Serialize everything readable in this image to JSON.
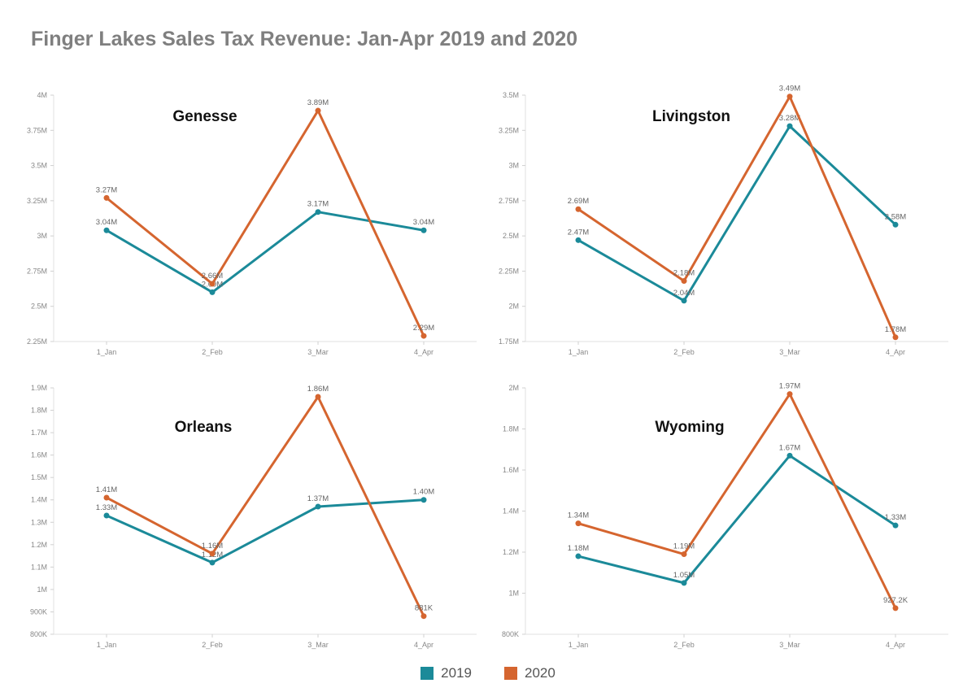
{
  "title": "Finger Lakes Sales Tax Revenue: Jan-Apr 2019 and 2020",
  "colors": {
    "2019": "#1b8a99",
    "2020": "#d5652f"
  },
  "legend": [
    {
      "label": "2019",
      "color": "#1b8a99"
    },
    {
      "label": "2020",
      "color": "#d5652f"
    }
  ],
  "chart_data": [
    {
      "type": "line",
      "title": "Genesse",
      "categories": [
        "1_Jan",
        "2_Feb",
        "3_Mar",
        "4_Apr"
      ],
      "ylim": [
        2250000,
        4000000
      ],
      "yticks": [
        2250000,
        2500000,
        2750000,
        3000000,
        3250000,
        3500000,
        3750000,
        4000000
      ],
      "ytick_labels": [
        "2.25M",
        "2.5M",
        "2.75M",
        "3M",
        "3.25M",
        "3.5M",
        "3.75M",
        "4M"
      ],
      "series": [
        {
          "name": "2019",
          "values": [
            3040000,
            2600000,
            3170000,
            3040000
          ],
          "labels": [
            "3.04M",
            "2.60M",
            "3.17M",
            "3.04M"
          ]
        },
        {
          "name": "2020",
          "values": [
            3270000,
            2660000,
            3890000,
            2290000
          ],
          "labels": [
            "3.27M",
            "2.66M",
            "3.89M",
            "2.29M"
          ]
        }
      ]
    },
    {
      "type": "line",
      "title": "Livingston",
      "categories": [
        "1_Jan",
        "2_Feb",
        "3_Mar",
        "4_Apr"
      ],
      "ylim": [
        1750000,
        3500000
      ],
      "yticks": [
        1750000,
        2000000,
        2250000,
        2500000,
        2750000,
        3000000,
        3250000,
        3500000
      ],
      "ytick_labels": [
        "1.75M",
        "2M",
        "2.25M",
        "2.5M",
        "2.75M",
        "3M",
        "3.25M",
        "3.5M"
      ],
      "series": [
        {
          "name": "2019",
          "values": [
            2470000,
            2040000,
            3280000,
            2580000
          ],
          "labels": [
            "2.47M",
            "2.04M",
            "3.28M",
            "2.58M"
          ]
        },
        {
          "name": "2020",
          "values": [
            2690000,
            2180000,
            3490000,
            1780000
          ],
          "labels": [
            "2.69M",
            "2.18M",
            "3.49M",
            "1.78M"
          ]
        }
      ]
    },
    {
      "type": "line",
      "title": "Orleans",
      "categories": [
        "1_Jan",
        "2_Feb",
        "3_Mar",
        "4_Apr"
      ],
      "ylim": [
        800000,
        1900000
      ],
      "yticks": [
        800000,
        900000,
        1000000,
        1100000,
        1200000,
        1300000,
        1400000,
        1500000,
        1600000,
        1700000,
        1800000,
        1900000
      ],
      "ytick_labels": [
        "800K",
        "900K",
        "1M",
        "1.1M",
        "1.2M",
        "1.3M",
        "1.4M",
        "1.5M",
        "1.6M",
        "1.7M",
        "1.8M",
        "1.9M"
      ],
      "series": [
        {
          "name": "2019",
          "values": [
            1330000,
            1120000,
            1370000,
            1400000
          ],
          "labels": [
            "1.33M",
            "1.12M",
            "1.37M",
            "1.40M"
          ]
        },
        {
          "name": "2020",
          "values": [
            1410000,
            1160000,
            1860000,
            881000
          ],
          "labels": [
            "1.41M",
            "1.16M",
            "1.86M",
            "881K"
          ]
        }
      ]
    },
    {
      "type": "line",
      "title": "Wyoming",
      "categories": [
        "1_Jan",
        "2_Feb",
        "3_Mar",
        "4_Apr"
      ],
      "ylim": [
        800000,
        2000000
      ],
      "yticks": [
        800000,
        1000000,
        1200000,
        1400000,
        1600000,
        1800000,
        2000000
      ],
      "ytick_labels": [
        "800K",
        "1M",
        "1.2M",
        "1.4M",
        "1.6M",
        "1.8M",
        "2M"
      ],
      "series": [
        {
          "name": "2019",
          "values": [
            1180000,
            1050000,
            1670000,
            1330000
          ],
          "labels": [
            "1.18M",
            "1.05M",
            "1.67M",
            "1.33M"
          ]
        },
        {
          "name": "2020",
          "values": [
            1340000,
            1190000,
            1970000,
            927200
          ],
          "labels": [
            "1.34M",
            "1.19M",
            "1.97M",
            "927.2K"
          ]
        }
      ]
    }
  ]
}
